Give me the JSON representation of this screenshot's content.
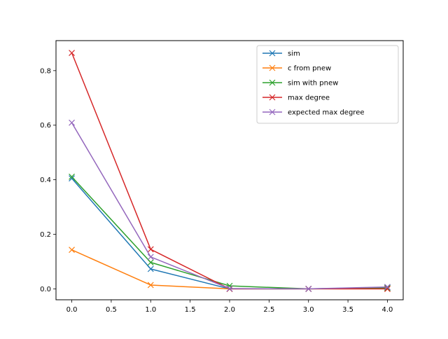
{
  "chart_data": {
    "type": "line",
    "title": "",
    "xlabel": "",
    "ylabel": "",
    "x": [
      0,
      1,
      2,
      3,
      4
    ],
    "xlim": [
      -0.2,
      4.2
    ],
    "ylim": [
      -0.04,
      0.91
    ],
    "xticks": [
      0.0,
      0.5,
      1.0,
      1.5,
      2.0,
      2.5,
      3.0,
      3.5,
      4.0
    ],
    "xtick_labels": [
      "0.0",
      "0.5",
      "1.0",
      "1.5",
      "2.0",
      "2.5",
      "3.0",
      "3.5",
      "4.0"
    ],
    "yticks": [
      0.0,
      0.2,
      0.4,
      0.6,
      0.8
    ],
    "ytick_labels": [
      "0.0",
      "0.2",
      "0.4",
      "0.6",
      "0.8"
    ],
    "grid": false,
    "legend_position": "top-right",
    "marker": "x",
    "series": [
      {
        "name": "sim",
        "color": "#1f77b4",
        "values": [
          0.405,
          0.073,
          0.0,
          0.0,
          0.005
        ]
      },
      {
        "name": "c from pnew",
        "color": "#ff7f0e",
        "values": [
          0.143,
          0.014,
          0.0,
          0.0,
          0.0
        ]
      },
      {
        "name": "sim with pnew",
        "color": "#2ca02c",
        "values": [
          0.411,
          0.097,
          0.011,
          0.0,
          0.003
        ]
      },
      {
        "name": "max degree",
        "color": "#d62728",
        "values": [
          0.865,
          0.145,
          0.0,
          0.0,
          0.0
        ]
      },
      {
        "name": "expected max degree",
        "color": "#9467bd",
        "values": [
          0.609,
          0.117,
          0.001,
          0.0,
          0.007
        ]
      }
    ]
  }
}
